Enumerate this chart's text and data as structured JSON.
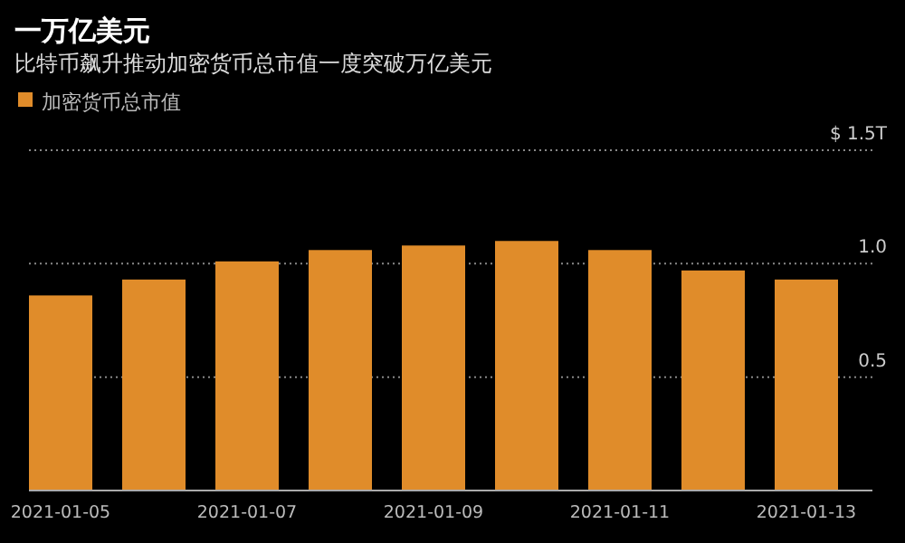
{
  "chart_data": {
    "type": "bar",
    "title": "一万亿美元",
    "subtitle": "比特币飙升推动加密货币总市值一度突破万亿美元",
    "categories": [
      "2021-01-05",
      null,
      "2021-01-07",
      null,
      "2021-01-09",
      null,
      "2021-01-11",
      null,
      "2021-01-13"
    ],
    "series": [
      {
        "name": "加密货币总市值",
        "color": "#e08c2a",
        "values": [
          0.86,
          0.93,
          1.01,
          1.06,
          1.08,
          1.1,
          1.06,
          0.97,
          0.93
        ]
      }
    ],
    "ylim": [
      0,
      1.5
    ],
    "yticks": [
      {
        "value": 0.5,
        "label": "0.5"
      },
      {
        "value": 1,
        "label": "1.0"
      },
      {
        "value": 1.5,
        "label": "$ 1.5T"
      }
    ],
    "grid": "y",
    "legend": "top left"
  }
}
